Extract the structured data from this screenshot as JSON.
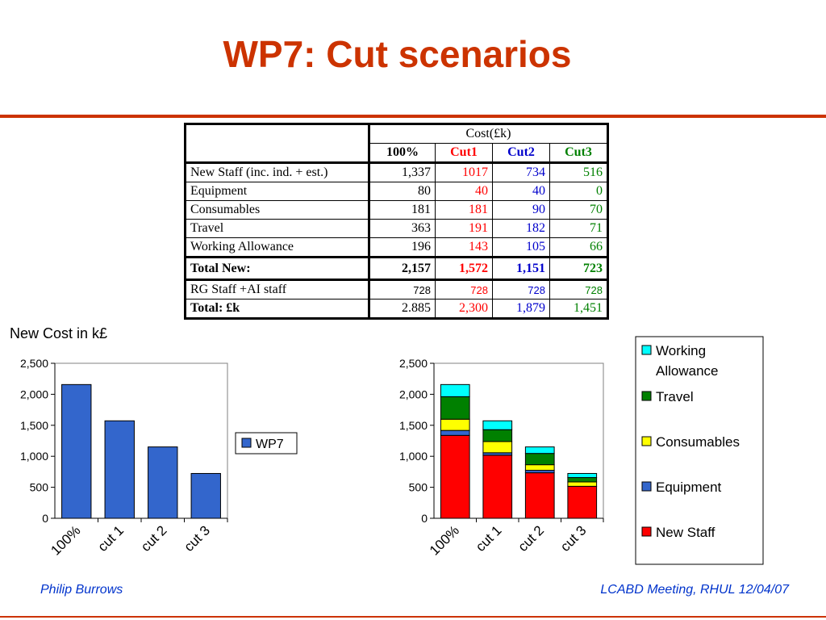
{
  "title": "WP7: Cut scenarios",
  "table": {
    "group_header": "Cost(£k)",
    "columns": [
      "100%",
      "Cut1",
      "Cut2",
      "Cut3"
    ],
    "rows": [
      {
        "label": "New Staff (inc. ind. + est.)",
        "values": [
          "1,337",
          "1017",
          "734",
          "516"
        ]
      },
      {
        "label": "Equipment",
        "values": [
          "80",
          "40",
          "40",
          "0"
        ]
      },
      {
        "label": "Consumables",
        "values": [
          "181",
          "181",
          "90",
          "70"
        ]
      },
      {
        "label": "Travel",
        "values": [
          "363",
          "191",
          "182",
          "71"
        ]
      },
      {
        "label": "Working Allowance",
        "values": [
          "196",
          "143",
          "105",
          "66"
        ]
      }
    ],
    "total_new": {
      "label": "Total New:",
      "values": [
        "2,157",
        "1,572",
        "1,151",
        "723"
      ]
    },
    "rg_staff": {
      "label": "RG Staff +AI staff",
      "values": [
        "728",
        "728",
        "728",
        "728"
      ]
    },
    "total": {
      "label": "Total: £k",
      "values": [
        "2.885",
        "2,300",
        "1,879",
        "1,451"
      ]
    },
    "column_colors": [
      "#000000",
      "#ff0000",
      "#0000cc",
      "#008000"
    ]
  },
  "chart_section_label": "New Cost in k£",
  "chart_data": [
    {
      "type": "bar",
      "categories": [
        "100%",
        "cut 1",
        "cut 2",
        "cut 3"
      ],
      "series": [
        {
          "name": "WP7",
          "values": [
            2157,
            1572,
            1151,
            723
          ],
          "color": "#3366cc"
        }
      ],
      "ylim": [
        0,
        2500
      ],
      "yticks": [
        "0",
        "500",
        "1,000",
        "1,500",
        "2,000",
        "2,500"
      ],
      "legend": "right"
    },
    {
      "type": "bar",
      "stacked": true,
      "categories": [
        "100%",
        "cut 1",
        "cut 2",
        "cut 3"
      ],
      "series": [
        {
          "name": "New Staff",
          "values": [
            1337,
            1017,
            734,
            516
          ],
          "color": "#ff0000"
        },
        {
          "name": "Equipment",
          "values": [
            80,
            40,
            40,
            0
          ],
          "color": "#3366cc"
        },
        {
          "name": "Consumables",
          "values": [
            181,
            181,
            90,
            70
          ],
          "color": "#ffff00"
        },
        {
          "name": "Travel",
          "values": [
            363,
            191,
            182,
            71
          ],
          "color": "#008000"
        },
        {
          "name": "Working Allowance",
          "values": [
            196,
            143,
            105,
            66
          ],
          "color": "#00ffff"
        }
      ],
      "ylim": [
        0,
        2500
      ],
      "yticks": [
        "0",
        "500",
        "1,000",
        "1,500",
        "2,000",
        "2,500"
      ],
      "legend": "right"
    }
  ],
  "footer": {
    "left": "Philip Burrows",
    "right": "LCABD Meeting, RHUL 12/04/07"
  }
}
